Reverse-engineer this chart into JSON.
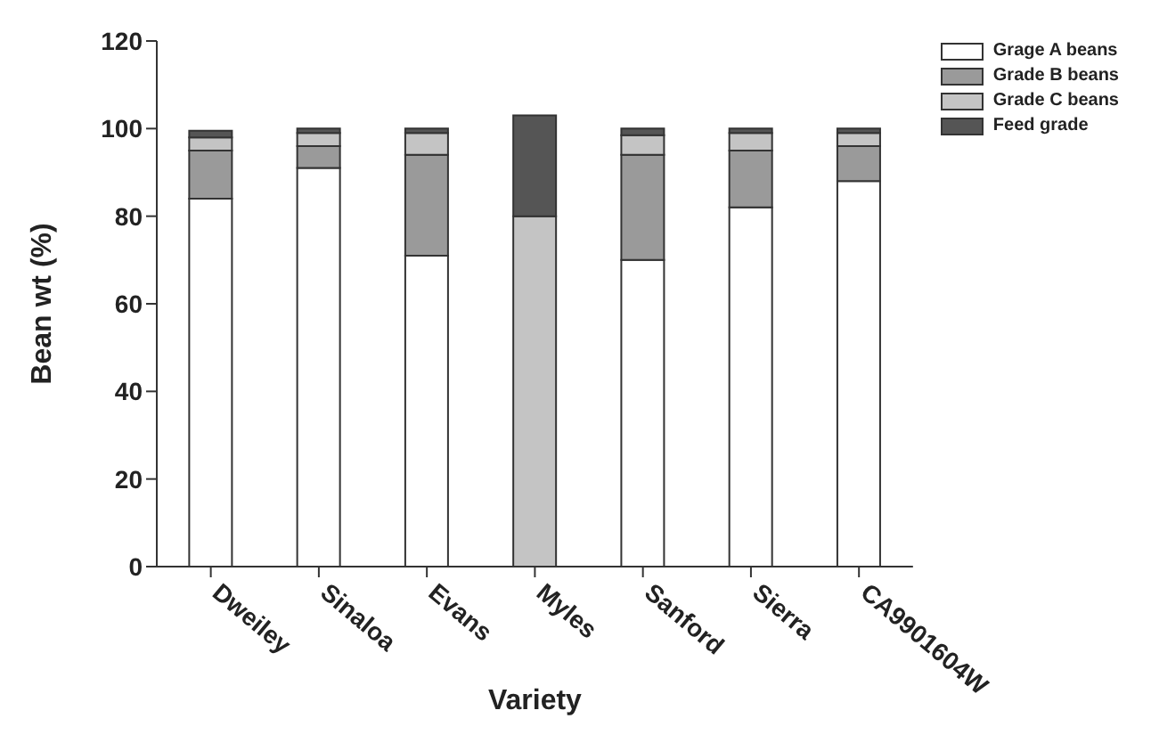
{
  "chart_data": {
    "type": "bar",
    "stacked": true,
    "xlabel": "Variety",
    "ylabel": "Bean wt (%)",
    "categories": [
      "Dweiley",
      "Sinaloa",
      "Evans",
      "Myles",
      "Sanford",
      "Sierra",
      "CA9901604W"
    ],
    "series": [
      {
        "name": "Grage A beans",
        "color": "#ffffff",
        "values": [
          84,
          91,
          71,
          0,
          70,
          82,
          88
        ]
      },
      {
        "name": "Grade B beans",
        "color": "#9a9a9a",
        "values": [
          11,
          5,
          23,
          0,
          24,
          13,
          8
        ]
      },
      {
        "name": "Grade C beans",
        "color": "#c4c4c4",
        "values": [
          3,
          3,
          5,
          80,
          4.5,
          4,
          3
        ]
      },
      {
        "name": "Feed grade",
        "color": "#555555",
        "values": [
          1.5,
          1,
          1,
          23,
          1.5,
          1,
          1
        ]
      }
    ],
    "ylim": [
      0,
      120
    ],
    "yticks": [
      0,
      20,
      40,
      60,
      80,
      100,
      120
    ],
    "legend": "top right"
  }
}
